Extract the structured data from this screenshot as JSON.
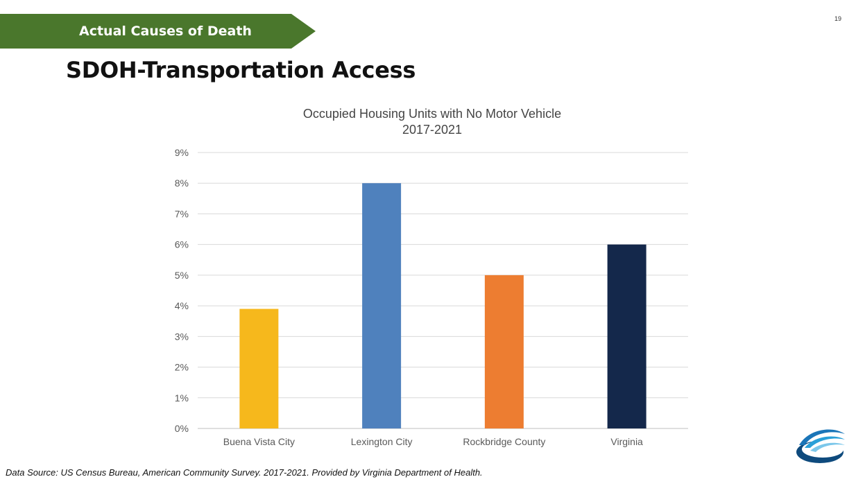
{
  "banner": {
    "label": "Actual Causes of Death",
    "color": "#4a772c"
  },
  "page_number": "19",
  "title": "SDOH-Transportation Access",
  "chart_data": {
    "type": "bar",
    "title": "Occupied Housing Units with No Motor Vehicle",
    "subtitle": "2017-2021",
    "categories": [
      "Buena Vista City",
      "Lexington City",
      "Rockbridge County",
      "Virginia"
    ],
    "values": [
      3.9,
      8.0,
      5.0,
      6.0
    ],
    "colors": [
      "#f6b81c",
      "#4f81bd",
      "#ed7d31",
      "#14284b"
    ],
    "ylim": [
      0,
      9
    ],
    "yticks": [
      0,
      1,
      2,
      3,
      4,
      5,
      6,
      7,
      8,
      9
    ],
    "tick_suffix": "%",
    "grid": true,
    "xlabel": "",
    "ylabel": ""
  },
  "source": "Data Source: US Census Bureau, American Community Survey. 2017-2021. Provided by Virginia Department of Health.",
  "logo": {
    "icon": "vdh-swoosh-logo-icon"
  }
}
